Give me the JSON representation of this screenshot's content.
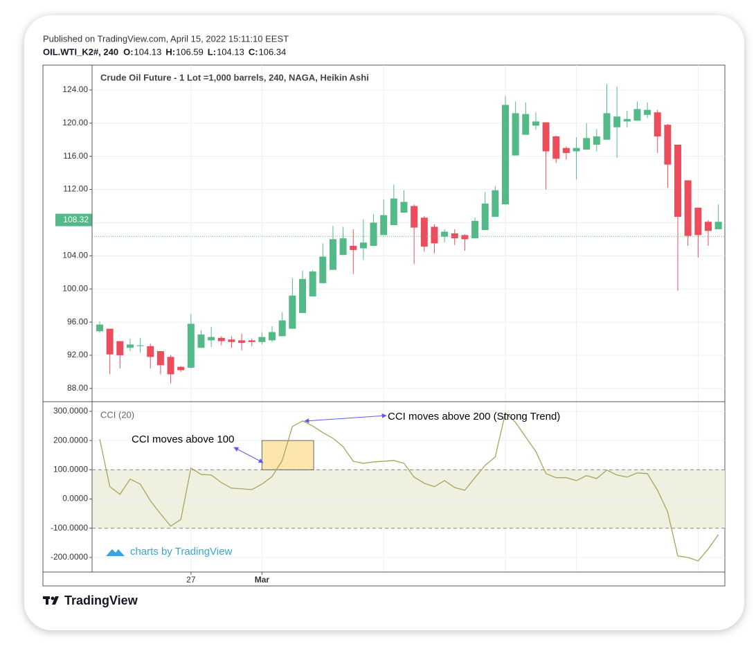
{
  "header": {
    "published": "Published on TradingView.com, April 15, 2022 15:11:10 EEST",
    "symbol": "OIL.WTI_K2#, 240",
    "ohlc": [
      {
        "key": "O:",
        "value": 104.13
      },
      {
        "key": "H:",
        "value": 106.59
      },
      {
        "key": "L:",
        "value": 104.13
      },
      {
        "key": "C:",
        "value": 106.34
      }
    ]
  },
  "watermark": "charts by TradingView",
  "logo": "TradingView",
  "chart_data": [
    {
      "type": "candlestick",
      "title": "Crude Oil Future - 1 Lot =1,000 barrels, 240, NAGA, Heikin Ashi",
      "categories": [
        null,
        null,
        null,
        null,
        null,
        null,
        null,
        null,
        null,
        "27",
        null,
        null,
        null,
        null,
        null,
        null,
        "Mar",
        null,
        null,
        null,
        null,
        null,
        null,
        null,
        null,
        null,
        null,
        null,
        null,
        null,
        null,
        null,
        null,
        null,
        null,
        null,
        null,
        null,
        null,
        null,
        null,
        null,
        null,
        null,
        null,
        null,
        null,
        null,
        null,
        null,
        null,
        null,
        null,
        null,
        null,
        null,
        null,
        null,
        null,
        null,
        null,
        null
      ],
      "open": [
        94.9,
        95.2,
        93.7,
        92.9,
        93.1,
        93.1,
        92.5,
        91.8,
        90.6,
        90.5,
        92.9,
        93.8,
        94.1,
        93.9,
        93.8,
        93.8,
        93.6,
        93.8,
        94.3,
        95.2,
        97.1,
        99.1,
        100.7,
        102.3,
        104.1,
        105.2,
        104.9,
        105.2,
        106.5,
        107.7,
        109.2,
        110.0,
        108.6,
        107.5,
        106.3,
        106.7,
        106.5,
        106.1,
        107.1,
        108.7,
        110.2,
        116.1,
        118.6,
        119.7,
        120.1,
        118.4,
        117.0,
        116.6,
        116.8,
        117.4,
        118.0,
        119.5,
        120.2,
        120.3,
        121.0,
        121.3,
        119.8,
        117.4,
        113.1,
        109.8,
        108.1,
        107.2
      ],
      "high": [
        96.1,
        95.2,
        93.7,
        94.0,
        94.1,
        93.4,
        92.5,
        92.0,
        90.7,
        97.0,
        95.0,
        95.4,
        94.3,
        94.3,
        94.6,
        94.0,
        94.8,
        95.5,
        97.2,
        101.3,
        102.2,
        102.3,
        105.5,
        107.6,
        107.5,
        107.2,
        108.4,
        109.0,
        110.8,
        112.6,
        111.9,
        110.2,
        108.8,
        107.8,
        107.2,
        107.2,
        106.6,
        108.6,
        111.7,
        112.4,
        123.3,
        122.6,
        122.5,
        121.3,
        120.1,
        118.5,
        117.2,
        118.3,
        120.0,
        119.3,
        124.7,
        124.4,
        121.5,
        122.6,
        122.5,
        121.6,
        119.9,
        117.4,
        113.1,
        109.8,
        108.3,
        110.2
      ],
      "low": [
        94.7,
        89.7,
        90.4,
        92.5,
        92.3,
        90.4,
        89.7,
        88.6,
        90.0,
        90.4,
        92.9,
        93.0,
        93.2,
        92.9,
        92.6,
        93.1,
        93.3,
        93.6,
        94.3,
        95.2,
        97.1,
        99.1,
        100.7,
        102.3,
        104.1,
        101.8,
        103.5,
        105.2,
        106.5,
        107.7,
        109.2,
        103.0,
        104.5,
        104.3,
        105.6,
        105.3,
        104.6,
        106.1,
        107.1,
        108.7,
        110.2,
        116.1,
        118.6,
        119.2,
        112.0,
        115.2,
        115.6,
        113.2,
        116.8,
        116.6,
        118.0,
        115.8,
        119.5,
        120.3,
        120.6,
        116.4,
        112.2,
        99.8,
        105.2,
        103.8,
        105.2,
        107.2
      ],
      "close": [
        95.7,
        92.1,
        92.0,
        93.3,
        93.2,
        91.8,
        90.8,
        89.7,
        90.2,
        95.8,
        94.5,
        94.2,
        93.7,
        93.6,
        93.5,
        93.6,
        94.2,
        94.8,
        96.2,
        99.2,
        101.2,
        102.1,
        103.9,
        106.0,
        106.1,
        104.7,
        105.6,
        108.0,
        108.9,
        110.9,
        110.5,
        107.4,
        105.1,
        105.5,
        106.9,
        106.1,
        106.0,
        108.2,
        110.3,
        111.9,
        122.2,
        121.2,
        121.1,
        120.2,
        116.6,
        115.7,
        116.4,
        117.0,
        118.2,
        118.4,
        121.2,
        120.8,
        120.5,
        121.7,
        121.6,
        118.4,
        115.0,
        108.7,
        106.4,
        106.5,
        107.0,
        108.1
      ],
      "up_color": "#53b987",
      "down_color": "#eb4d5c",
      "last_price": 108.32,
      "ylim": [
        86.4,
        127.0
      ],
      "yticks": [
        {
          "value": 88,
          "label": "88.00"
        },
        {
          "value": 92,
          "label": "92.00"
        },
        {
          "value": 96,
          "label": "96.00"
        },
        {
          "value": 100,
          "label": "100.00"
        },
        {
          "value": 104,
          "label": "104.00"
        },
        {
          "value": 108,
          "label": "108.00"
        },
        {
          "value": 112,
          "label": "112.00"
        },
        {
          "value": 116,
          "label": "116.00"
        },
        {
          "value": 120,
          "label": "120.00"
        },
        {
          "value": 124,
          "label": "124.00"
        }
      ],
      "grid": true
    },
    {
      "type": "line",
      "title": "CCI (20)",
      "color": "#a3a65b",
      "values": [
        205,
        42,
        16,
        68,
        51,
        -6,
        -51,
        -93,
        -70,
        106,
        84,
        82,
        56,
        37,
        35,
        32,
        51,
        77,
        132,
        248,
        267,
        250,
        227,
        208,
        179,
        129,
        122,
        127,
        129,
        132,
        122,
        75,
        54,
        42,
        63,
        39,
        30,
        73,
        115,
        144,
        295,
        262,
        212,
        163,
        87,
        73,
        73,
        63,
        80,
        70,
        99,
        82,
        75,
        89,
        87,
        30,
        -44,
        -195,
        -200,
        -212,
        -171,
        -122
      ],
      "band": [
        -100,
        100
      ],
      "band_color": "#f0f0e0",
      "highlight": [
        100,
        200
      ],
      "highlight_color": "#fde6ae",
      "annotations": [
        "CCI moves above 100",
        "CCI moves above 200 (Strong Trend)"
      ],
      "ylim": [
        -250,
        333
      ],
      "yticks": [
        {
          "value": -200,
          "label": "-200.0000"
        },
        {
          "value": -100,
          "label": "-100.0000"
        },
        {
          "value": 0,
          "label": "0.0000"
        },
        {
          "value": 100,
          "label": "100.0000"
        },
        {
          "value": 200,
          "label": "200.0000"
        },
        {
          "value": 300,
          "label": "300.0000"
        }
      ],
      "grid": true
    }
  ]
}
